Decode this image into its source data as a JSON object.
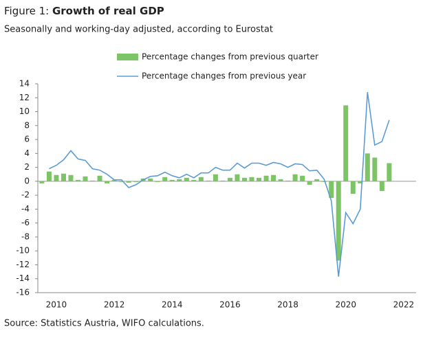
{
  "chart_data": {
    "type": "bar-line",
    "title_prefix": "Figure 1:",
    "title": "Growth of real GDP",
    "subtitle": "Seasonally and working-day adjusted, according to Eurostat",
    "source": "Source: Statistics Austria, WIFO calculations.",
    "x": [
      2009.5,
      2009.75,
      2010,
      2010.25,
      2010.5,
      2010.75,
      2011,
      2011.25,
      2011.5,
      2011.75,
      2012,
      2012.25,
      2012.5,
      2012.75,
      2013,
      2013.25,
      2013.5,
      2013.75,
      2014,
      2014.25,
      2014.5,
      2014.75,
      2015,
      2015.25,
      2015.5,
      2015.75,
      2016,
      2016.25,
      2016.5,
      2016.75,
      2017,
      2017.25,
      2017.5,
      2017.75,
      2018,
      2018.25,
      2018.5,
      2018.75,
      2019,
      2019.25,
      2019.5,
      2019.75,
      2020,
      2020.25,
      2020.5,
      2020.75,
      2021,
      2021.25,
      2021.5
    ],
    "series": [
      {
        "name": "Percentage changes from previous quarter",
        "type": "bar",
        "color": "#7cc465",
        "values": [
          -0.3,
          1.4,
          0.9,
          1.1,
          0.9,
          0.2,
          0.7,
          0.1,
          0.8,
          -0.3,
          0.2,
          -0.1,
          -0.2,
          -0.1,
          0.4,
          0.4,
          -0.1,
          0.6,
          0.2,
          0.3,
          0.5,
          0.2,
          0.6,
          0.1,
          1.0,
          0.1,
          0.5,
          1.0,
          0.5,
          0.6,
          0.5,
          0.8,
          0.9,
          0.3,
          0.1,
          1.0,
          0.8,
          -0.5,
          0.3,
          -0.1,
          -2.4,
          -11.4,
          10.9,
          -1.8,
          -0.3,
          4.0,
          3.4,
          -1.4,
          2.6
        ]
      },
      {
        "name": "Percentage changes from previous year",
        "type": "line",
        "color": "#5b9bd5",
        "values": [
          null,
          1.8,
          2.3,
          3.1,
          4.4,
          3.2,
          3.0,
          1.8,
          1.6,
          1.0,
          0.2,
          0.2,
          -0.9,
          -0.5,
          0.2,
          0.7,
          0.8,
          1.3,
          0.8,
          0.5,
          1.0,
          0.5,
          1.2,
          1.2,
          2.0,
          1.6,
          1.6,
          2.6,
          1.9,
          2.6,
          2.6,
          2.3,
          2.7,
          2.5,
          2.0,
          2.5,
          2.4,
          1.5,
          1.6,
          0.3,
          -2.8,
          -13.7,
          -4.5,
          -6.1,
          -4.0,
          12.8,
          5.2,
          5.7,
          8.8
        ]
      }
    ],
    "xlim": [
      2009.36,
      2022.43
    ],
    "xticks": [
      2010,
      2012,
      2014,
      2016,
      2018,
      2020,
      2022
    ],
    "ylim": [
      -16,
      14
    ],
    "yticks": [
      -16,
      -14,
      -12,
      -10,
      -8,
      -6,
      -4,
      -2,
      0,
      2,
      4,
      6,
      8,
      10,
      12,
      14
    ]
  }
}
